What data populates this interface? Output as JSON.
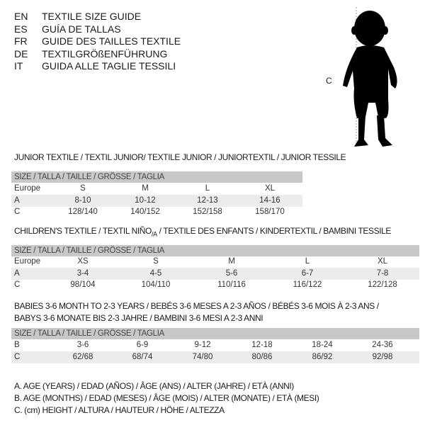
{
  "header": {
    "lines": [
      {
        "code": "EN",
        "text": "TEXTILE SIZE GUIDE"
      },
      {
        "code": "ES",
        "text": "GUÍA DE TALLAS"
      },
      {
        "code": "FR",
        "text": "GUIDE DES TAILLES TEXTILE"
      },
      {
        "code": "DE",
        "text": "TEXTILGRÖßENFÜHRUNG"
      },
      {
        "code": "IT",
        "text": "GUIDA ALLE TAGLIE TESSILI"
      }
    ]
  },
  "figure": {
    "label": "C"
  },
  "junior": {
    "title": "JUNIOR TEXTILE / TEXTIL JUNIOR/ TEXTILE JUNIOR / JUNIORTEXTIL / JUNIOR TESSILE",
    "header": "SIZE / TALLA / TAILLE / GRÖSSE / TAGLIA",
    "rows": [
      {
        "label": "Europe",
        "values": [
          "S",
          "M",
          "L",
          "XL"
        ]
      },
      {
        "label": "A",
        "values": [
          "8-10",
          "10-12",
          "12-13",
          "14-16"
        ]
      },
      {
        "label": "C",
        "values": [
          "128/140",
          "140/152",
          "152/158",
          "158/170"
        ]
      }
    ]
  },
  "children": {
    "title_pre": "CHILDREN'S TEXTILE / TEXTIL NIÑO",
    "title_sub": "/A",
    "title_post": " / TEXTILE DES ENFANTS / KINDERTEXTIL / BAMBINI TESSILE",
    "header": "SIZE / TALLA / TAILLE / GRÖSSE / TAGLIA",
    "rows": [
      {
        "label": "Europe",
        "values": [
          "XS",
          "S",
          "M",
          "L",
          "XL"
        ]
      },
      {
        "label": "A",
        "values": [
          "3-4",
          "4-5",
          "5-6",
          "6-7",
          "7-8"
        ]
      },
      {
        "label": "C",
        "values": [
          "98/104",
          "104/110",
          "110/116",
          "116/122",
          "122/128"
        ]
      }
    ]
  },
  "babies": {
    "title_line1": "BABIES 3-6 MONTH TO 2-3 YEARS / BEBÉS 3-6 MESES A 2-3 AÑOS / BÉBÉS 3-6 MOIS À 2-3 ANS /",
    "title_line2": "BABYS 3-6 MONATE BIS 2-3 JAHRE / BAMBINI 3-6 MESI A 2-3 ANNI",
    "header": "SIZE / TALLA / TAILLE / GRÖSSE / TAGLIA",
    "rows": [
      {
        "label": "B",
        "values": [
          "3-6",
          "6-9",
          "9-12",
          "12-18",
          "18-24",
          "24-36"
        ]
      },
      {
        "label": "C",
        "values": [
          "62/68",
          "68/74",
          "74/80",
          "80/86",
          "86/92",
          "92/98"
        ]
      }
    ]
  },
  "legend": [
    "A. AGE (YEARS) / EDAD (AÑOS) / ÂGE (ANS) / ALTER (JAHRE) / ETÀ (ANNI)",
    "B. AGE (MONTHS) / EDAD (MESES) / ÂGE (MOIS) / ALTER (MONATE) / ETÀ (MESI)",
    "C. (cm) HEIGHT / ALTURA / HAUTEUR / HÖHE / ALTEZZA"
  ]
}
